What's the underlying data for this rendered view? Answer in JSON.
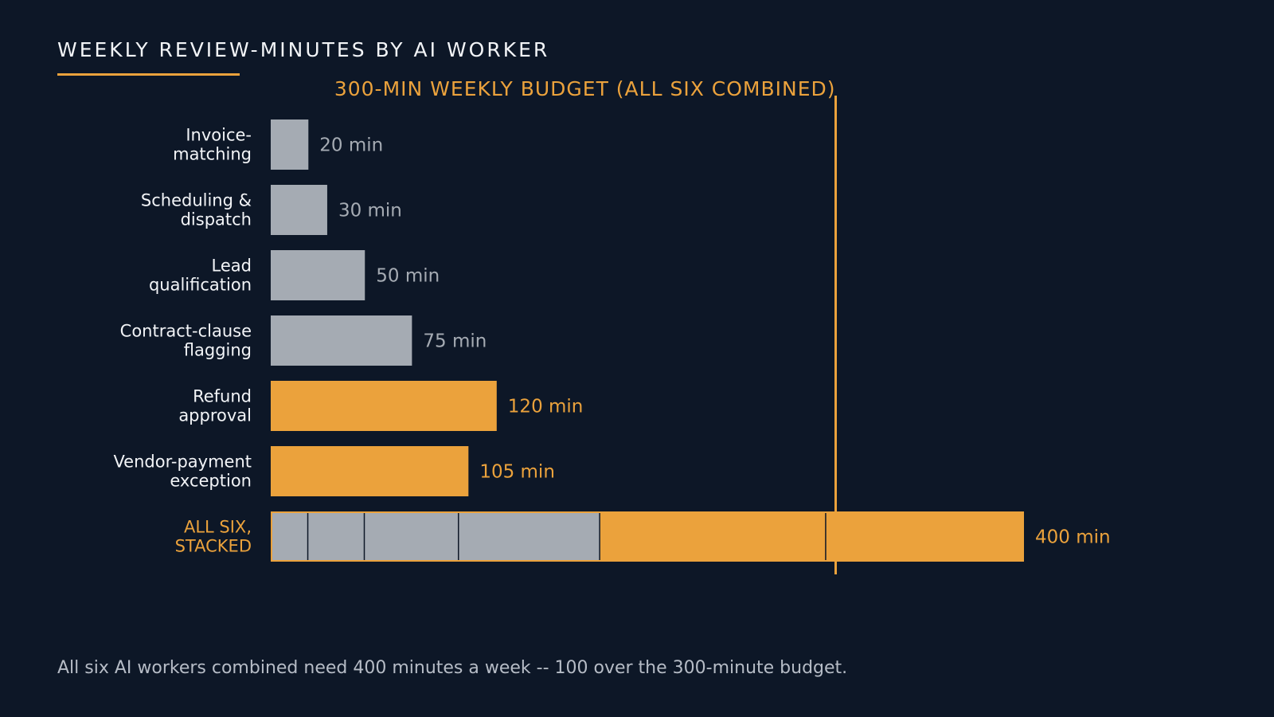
{
  "title": "WEEKLY REVIEW-MINUTES BY AI WORKER",
  "caption": "All six AI workers combined need 400 minutes a week -- 100 over the 300-minute budget.",
  "colors": {
    "background": "#0d1727",
    "neutral_bar": "#a5abb3",
    "accent": "#eba23c",
    "label_text": "#f2f4f7",
    "caption_text": "#b6bcc6"
  },
  "chart_data": {
    "type": "bar",
    "orientation": "horizontal",
    "unit": "min",
    "xlim": [
      0,
      400
    ],
    "grid": false,
    "categories": [
      [
        "Invoice-",
        "matching"
      ],
      [
        "Scheduling &",
        "dispatch"
      ],
      [
        "Lead",
        "qualification"
      ],
      [
        "Contract-clause",
        "flagging"
      ],
      [
        "Refund",
        "approval"
      ],
      [
        "Vendor-payment",
        "exception"
      ]
    ],
    "values": [
      20,
      30,
      50,
      75,
      120,
      105
    ],
    "value_labels": [
      "20 min",
      "30 min",
      "50 min",
      "75 min",
      "120 min",
      "105 min"
    ],
    "highlighted": [
      false,
      false,
      false,
      false,
      true,
      true
    ],
    "stacked_total": {
      "label": [
        "ALL SIX,",
        "STACKED"
      ],
      "value": 400,
      "value_label": "400 min"
    },
    "reference_line": {
      "value": 300,
      "label": "300-MIN WEEKLY BUDGET (ALL SIX COMBINED)"
    }
  }
}
